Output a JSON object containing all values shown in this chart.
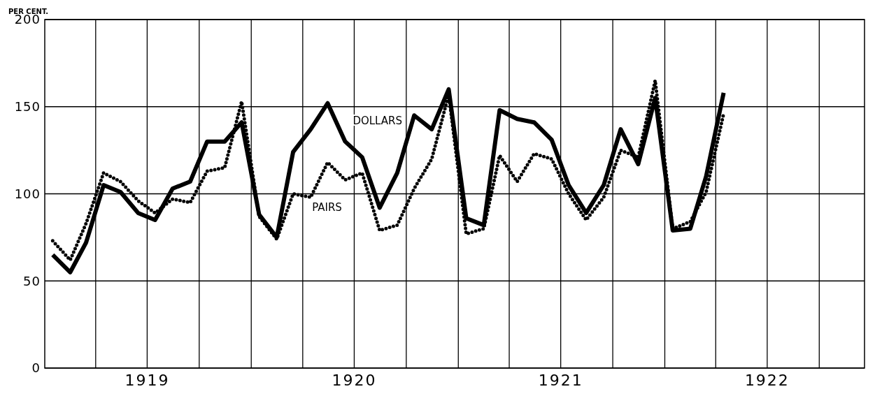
{
  "chart_data": {
    "type": "line",
    "ylabel": "PER CENT.",
    "x": [
      "1919-01-15",
      "1919-02-15",
      "1919-03-15",
      "1919-04-15",
      "1919-05-15",
      "1919-06-15",
      "1919-07-15",
      "1919-08-15",
      "1919-09-15",
      "1919-10-15",
      "1919-11-15",
      "1919-12-15",
      "1920-01-15",
      "1920-02-15",
      "1920-03-15",
      "1920-04-15",
      "1920-05-15",
      "1920-06-15",
      "1920-07-15",
      "1920-08-15",
      "1920-09-15",
      "1920-10-15",
      "1920-11-15",
      "1920-12-15",
      "1921-01-15",
      "1921-02-15",
      "1921-03-15",
      "1921-04-15",
      "1921-05-15",
      "1921-06-15",
      "1921-07-15",
      "1921-08-15",
      "1921-09-15",
      "1921-10-15",
      "1921-11-15",
      "1921-12-15",
      "1922-01-15",
      "1922-02-15",
      "1922-03-15",
      "1922-04-15"
    ],
    "series": [
      {
        "name": "DOLLARS",
        "color": "#000000",
        "line_style": "solid",
        "values": [
          65,
          55,
          72,
          105,
          101,
          89,
          85,
          103,
          107,
          130,
          130,
          141,
          88,
          75,
          124,
          137,
          152,
          130,
          121,
          92,
          112,
          145,
          137,
          160,
          86,
          82,
          148,
          143,
          141,
          131,
          105,
          89,
          105,
          137,
          117,
          155,
          79,
          80,
          110,
          158
        ]
      },
      {
        "name": "PAIRS",
        "color": "#000000",
        "line_style": "dotted",
        "values": [
          73,
          62,
          83,
          112,
          107,
          96,
          89,
          97,
          95,
          113,
          115,
          153,
          87,
          74,
          100,
          98,
          118,
          108,
          112,
          79,
          82,
          103,
          120,
          157,
          77,
          80,
          122,
          107,
          123,
          120,
          100,
          85,
          98,
          125,
          121,
          165,
          80,
          84,
          101,
          146
        ]
      }
    ],
    "xlim": [
      "1919-01-01",
      "1922-12-20"
    ],
    "xticks": [
      {
        "value": "1919-04-01",
        "label": null
      },
      {
        "value": "1919-07-01",
        "label": "1919"
      },
      {
        "value": "1919-10-01",
        "label": null
      },
      {
        "value": "1920-01-01",
        "label": null
      },
      {
        "value": "1920-04-01",
        "label": null
      },
      {
        "value": "1920-07-01",
        "label": "1920"
      },
      {
        "value": "1920-10-01",
        "label": null
      },
      {
        "value": "1921-01-01",
        "label": null
      },
      {
        "value": "1921-04-01",
        "label": null
      },
      {
        "value": "1921-07-01",
        "label": "1921"
      },
      {
        "value": "1921-10-01",
        "label": null
      },
      {
        "value": "1922-01-01",
        "label": null
      },
      {
        "value": "1922-04-01",
        "label": null
      },
      {
        "value": "1922-07-01",
        "label": "1922"
      },
      {
        "value": "1922-10-01",
        "label": null
      }
    ],
    "ylim": [
      0,
      200
    ],
    "yticks": [
      0,
      50,
      100,
      150,
      200
    ],
    "grid": true,
    "marker": "none"
  }
}
